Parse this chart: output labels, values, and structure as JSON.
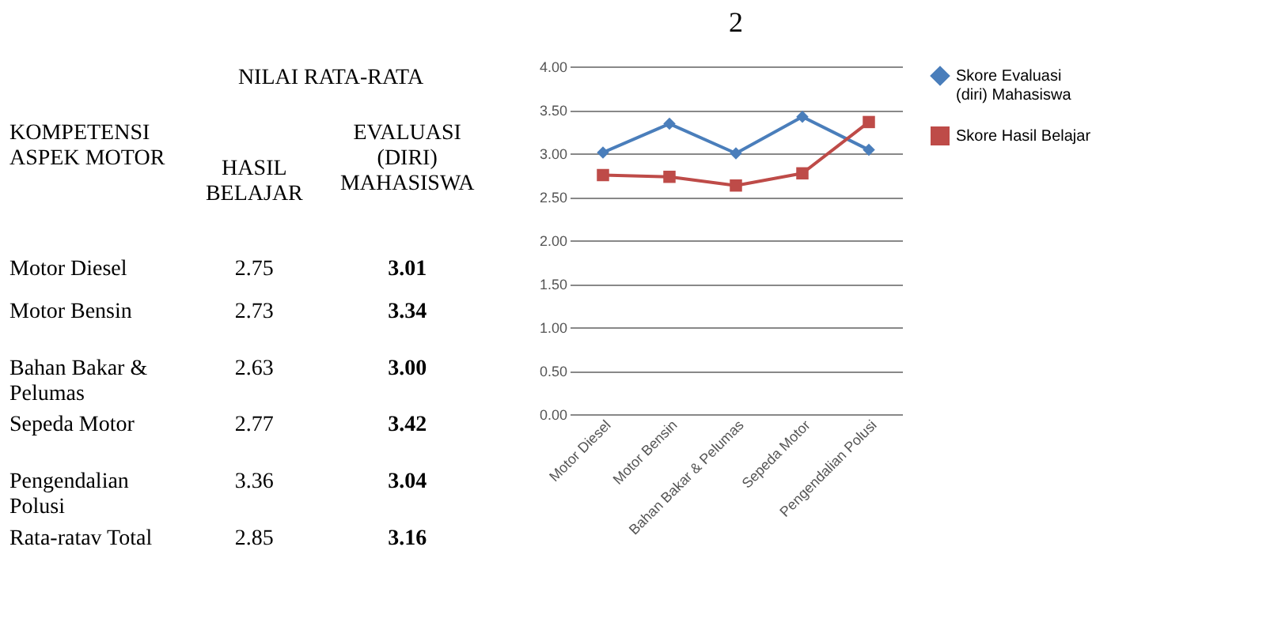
{
  "chart_data": [
    {
      "type": "other",
      "title": "NILAI RATA-RATA",
      "ylabel": "KOMPETENSI ASPEK MOTOR",
      "categories": [
        "Motor Diesel",
        "Motor Bensin",
        "Bahan Bakar & Pelumas",
        "Sepeda Motor",
        "Pengendalian Polusi",
        "Rata-ratav Total"
      ],
      "series": [
        {
          "name": "HASIL BELAJAR",
          "values": [
            2.75,
            2.73,
            2.63,
            2.77,
            3.36,
            2.85
          ]
        },
        {
          "name": "EVALUASI (DIRI) MAHASISWA",
          "values": [
            3.01,
            3.34,
            3.0,
            3.42,
            3.04,
            3.16
          ],
          "value_labels": [
            "3.01",
            "3.34",
            "3.00",
            "3.42",
            "3.04",
            "3.16"
          ]
        }
      ],
      "data_labels": true
    },
    {
      "type": "line",
      "title": "2",
      "categories": [
        "Motor Diesel",
        "Motor Bensin",
        "Bahan Bakar & Pelumas",
        "Sepeda Motor",
        "Pengendalian Polusi"
      ],
      "series": [
        {
          "name": "Skore Evaluasi (diri) Mahasiswa",
          "color": "#4a7ebb",
          "marker": "diamond",
          "values": [
            3.01,
            3.34,
            3.0,
            3.42,
            3.04
          ]
        },
        {
          "name": "Skore Hasil Belajar",
          "color": "#be4b48",
          "marker": "square",
          "values": [
            2.75,
            2.73,
            2.63,
            2.77,
            3.36
          ]
        }
      ],
      "ylim": [
        0,
        4
      ],
      "yticks": [
        {
          "value": 0,
          "label": "0.00"
        },
        {
          "value": 0.5,
          "label": "0.50"
        },
        {
          "value": 1,
          "label": "1.00"
        },
        {
          "value": 1.5,
          "label": "1.50"
        },
        {
          "value": 2,
          "label": "2.00"
        },
        {
          "value": 2.5,
          "label": "2.50"
        },
        {
          "value": 3,
          "label": "3.00"
        },
        {
          "value": 3.5,
          "label": "3.50"
        },
        {
          "value": 4,
          "label": "4.00"
        }
      ],
      "grid": "y",
      "legend": "right"
    }
  ]
}
